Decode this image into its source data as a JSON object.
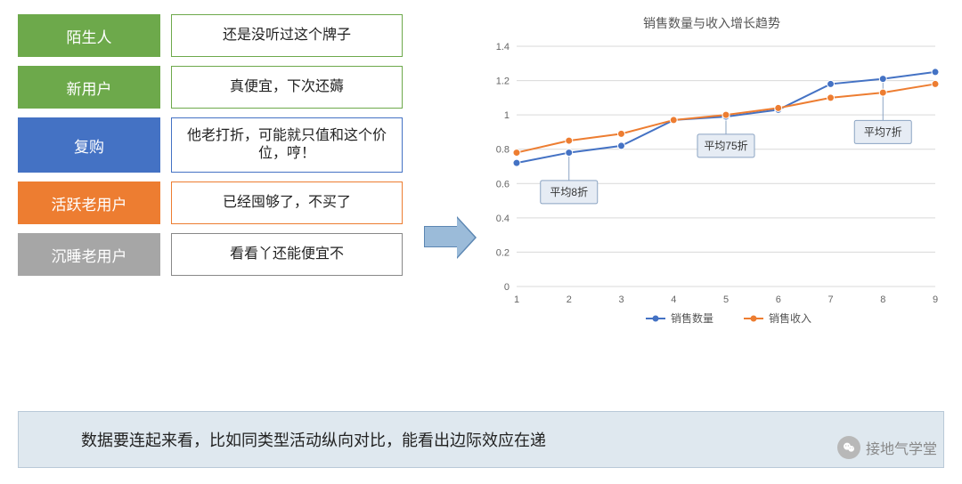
{
  "stages": [
    {
      "label": "陌生人",
      "color": "#6da94b",
      "comment": "还是没听过这个牌子",
      "tall": false
    },
    {
      "label": "新用户",
      "color": "#6da94b",
      "comment": "真便宜，下次还薅",
      "tall": false
    },
    {
      "label": "复购",
      "color": "#4472c4",
      "comment": "他老打折，可能就只值和这个价位，哼！",
      "tall": true
    },
    {
      "label": "活跃老用户",
      "color": "#ed7d31",
      "comment": "已经囤够了，不买了",
      "tall": false
    },
    {
      "label": "沉睡老用户",
      "color": "#a6a6a6",
      "comment": "看看丫还能便宜不",
      "tall": false
    }
  ],
  "chart": {
    "title": "销售数量与收入增长趋势",
    "type": "line",
    "x_values": [
      1,
      2,
      3,
      4,
      5,
      6,
      7,
      8,
      9
    ],
    "ylim": [
      0,
      1.4
    ],
    "ytick_step": 0.2,
    "series": [
      {
        "name": "销售数量",
        "color": "#4472c4",
        "marker": "circle",
        "y": [
          0.72,
          0.78,
          0.82,
          0.97,
          0.99,
          1.03,
          1.18,
          1.21,
          1.25
        ]
      },
      {
        "name": "销售收入",
        "color": "#ed7d31",
        "marker": "circle",
        "y": [
          0.78,
          0.85,
          0.89,
          0.97,
          1.0,
          1.04,
          1.1,
          1.13,
          1.18
        ]
      }
    ],
    "callouts": [
      {
        "text": "平均8折",
        "x_index": 1,
        "y_at": 0.55,
        "point_series": 0,
        "point_i": 1
      },
      {
        "text": "平均75折",
        "x_index": 4,
        "y_at": 0.82,
        "point_series": 0,
        "point_i": 4
      },
      {
        "text": "平均7折",
        "x_index": 7,
        "y_at": 0.9,
        "point_series": 0,
        "point_i": 7
      }
    ],
    "grid_color": "#d9d9d9",
    "background_color": "#ffffff",
    "axis_fontsize": 11,
    "title_fontsize": 14,
    "marker_size": 4,
    "line_width": 2
  },
  "footer": {
    "text": "数据要连起来看，比如同类型活动纵向对比，能看出边际效应在递",
    "bg_color": "#dfe8ef",
    "border_color": "#b9c9d8"
  },
  "watermark": {
    "text": "接地气学堂",
    "icon_name": "wechat-icon"
  }
}
